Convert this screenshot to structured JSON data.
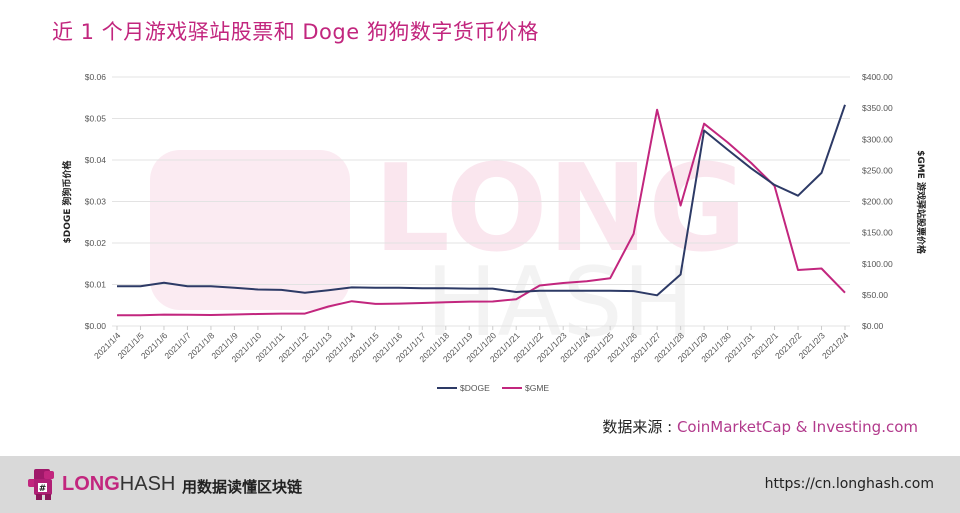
{
  "title": "近 1 个月游戏驿站股票和 Doge 狗狗数字货币价格",
  "source": {
    "label": "数据来源 : ",
    "names": "CoinMarketCap & Investing.com"
  },
  "footer": {
    "brand_long": "LONG",
    "brand_hash": "HASH",
    "slogan": "用数据读懂区块链",
    "url": "https://cn.longhash.com"
  },
  "watermark": {
    "line1": "LONG",
    "line2": "HASH"
  },
  "colors": {
    "doge": "#2d3a66",
    "gme": "#c2267e",
    "title": "#c2267e",
    "grid": "#e3e3e3",
    "footer_bg": "#d9d9d9"
  },
  "chart_data": {
    "type": "line",
    "title": "近 1 个月游戏驿站股票和 Doge 狗狗数字货币价格",
    "xlabel": "",
    "ylabel": "$DOGE 狗狗币价格",
    "y2label": "$GME 游戏驿站股票价格",
    "ylim": [
      0,
      0.06
    ],
    "y2lim": [
      0,
      400
    ],
    "yticks": [
      "$0.00",
      "$0.01",
      "$0.02",
      "$0.03",
      "$0.04",
      "$0.05",
      "$0.06"
    ],
    "y2ticks": [
      "$0.00",
      "$50.00",
      "$100.00",
      "$150.00",
      "$200.00",
      "$250.00",
      "$300.00",
      "$350.00",
      "$400.00"
    ],
    "grid": true,
    "legend_position": "bottom",
    "categories": [
      "2021/1/4",
      "2021/1/5",
      "2021/1/6",
      "2021/1/7",
      "2021/1/8",
      "2021/1/9",
      "2021/1/10",
      "2021/1/11",
      "2021/1/12",
      "2021/1/13",
      "2021/1/14",
      "2021/1/15",
      "2021/1/16",
      "2021/1/17",
      "2021/1/18",
      "2021/1/19",
      "2021/1/20",
      "2021/1/21",
      "2021/1/22",
      "2021/1/23",
      "2021/1/24",
      "2021/1/25",
      "2021/1/26",
      "2021/1/27",
      "2021/1/28",
      "2021/1/29",
      "2021/1/30",
      "2021/1/31",
      "2021/2/1",
      "2021/2/2",
      "2021/2/3",
      "2021/2/4"
    ],
    "series": [
      {
        "name": "$DOGE",
        "axis": "left",
        "color": "#2d3a66",
        "values": [
          0.0096,
          0.0096,
          0.0104,
          0.0096,
          0.0096,
          0.0092,
          0.0088,
          0.0087,
          0.008,
          0.0086,
          0.0093,
          0.0092,
          0.0092,
          0.0091,
          0.0091,
          0.009,
          0.009,
          0.0082,
          0.0085,
          0.0085,
          0.0085,
          0.0085,
          0.0084,
          0.0074,
          0.0124,
          0.0471,
          0.0425,
          0.038,
          0.034,
          0.0314,
          0.0369,
          0.0533
        ]
      },
      {
        "name": "$GME",
        "axis": "right",
        "color": "#c2267e",
        "values": [
          17.25,
          17.37,
          18.36,
          18.08,
          17.69,
          18.5,
          19.2,
          19.94,
          19.95,
          31.4,
          39.91,
          35.5,
          36.0,
          37.0,
          38.0,
          39.12,
          39.36,
          43.03,
          65.01,
          69.0,
          72.0,
          76.79,
          147.98,
          347.51,
          193.6,
          325.0,
          295.0,
          262.0,
          225.0,
          90.0,
          92.41,
          53.5
        ]
      }
    ]
  }
}
